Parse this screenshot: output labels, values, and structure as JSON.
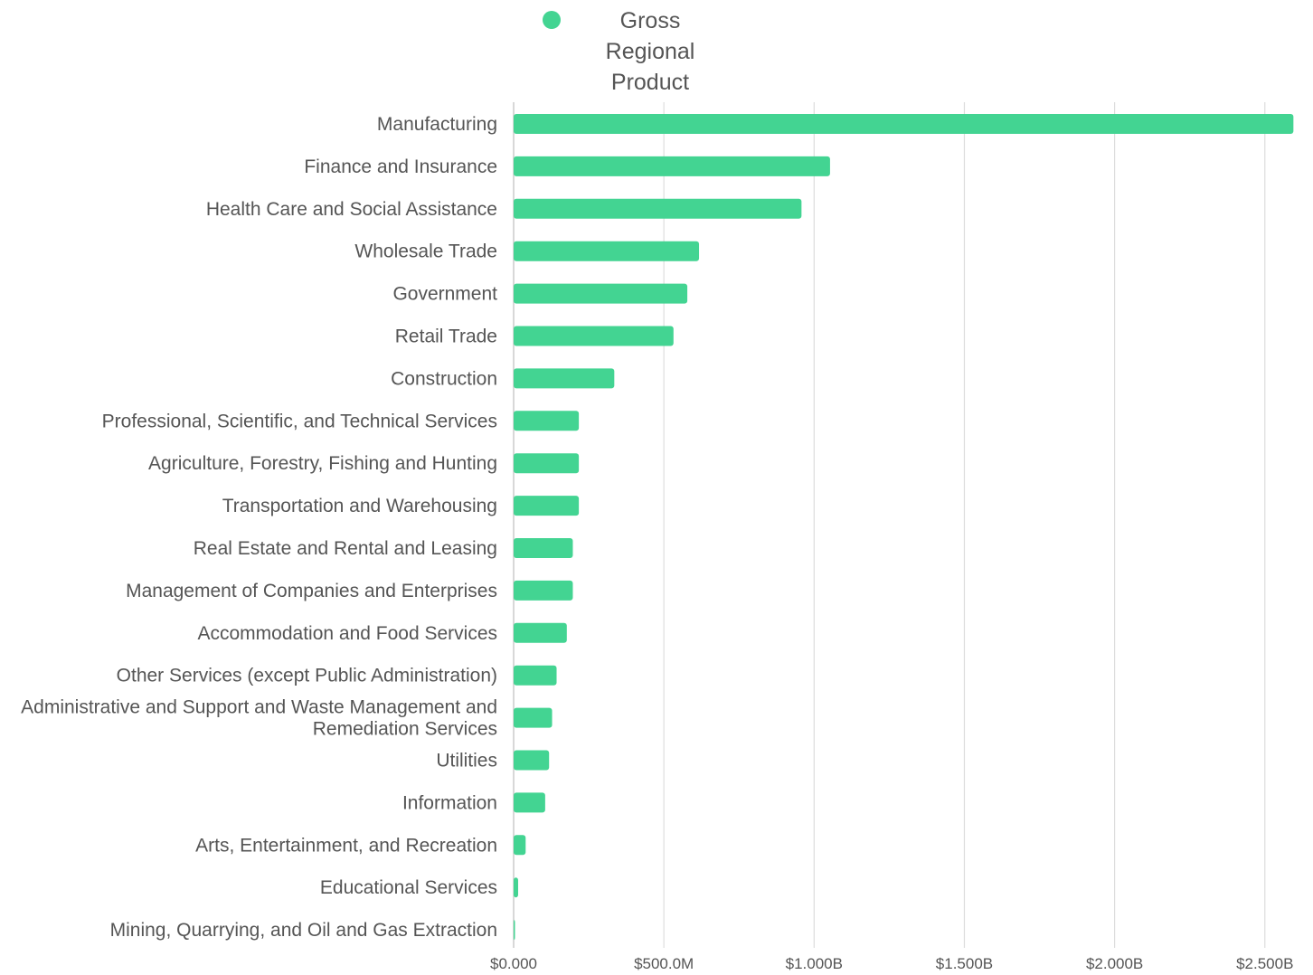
{
  "colors": {
    "bar": "#43d492",
    "grid": "#dddddd",
    "axis": "#cccccc",
    "text": "#555555"
  },
  "chart_data": {
    "type": "bar",
    "orientation": "horizontal",
    "legend_position": "top",
    "grid": true,
    "xlim": [
      0,
      2600000000
    ],
    "x_ticks": [
      0,
      500000000,
      1000000000,
      1500000000,
      2000000000,
      2500000000
    ],
    "x_tick_labels": [
      "$0.000",
      "$500.0M",
      "$1.000B",
      "$1.500B",
      "$2.000B",
      "$2.500B"
    ],
    "categories": [
      "Manufacturing",
      "Finance and Insurance",
      "Health Care and Social Assistance",
      "Wholesale Trade",
      "Government",
      "Retail Trade",
      "Construction",
      "Professional, Scientific, and Technical Services",
      "Agriculture, Forestry, Fishing and Hunting",
      "Transportation and Warehousing",
      "Real Estate and Rental and Leasing",
      "Management of Companies and Enterprises",
      "Accommodation and Food Services",
      "Other Services (except Public Administration)",
      "Administrative and Support and Waste Management and Remediation Services",
      "Utilities",
      "Information",
      "Arts, Entertainment, and Recreation",
      "Educational Services",
      "Mining, Quarrying, and Oil and Gas Extraction"
    ],
    "series": [
      {
        "name": "Gross Regional Product",
        "values": [
          2595000000,
          1053000000,
          958000000,
          617000000,
          578000000,
          532000000,
          335000000,
          217000000,
          217000000,
          217000000,
          197000000,
          197000000,
          177000000,
          143000000,
          128000000,
          118000000,
          105000000,
          40000000,
          15000000,
          2000000
        ]
      }
    ]
  }
}
